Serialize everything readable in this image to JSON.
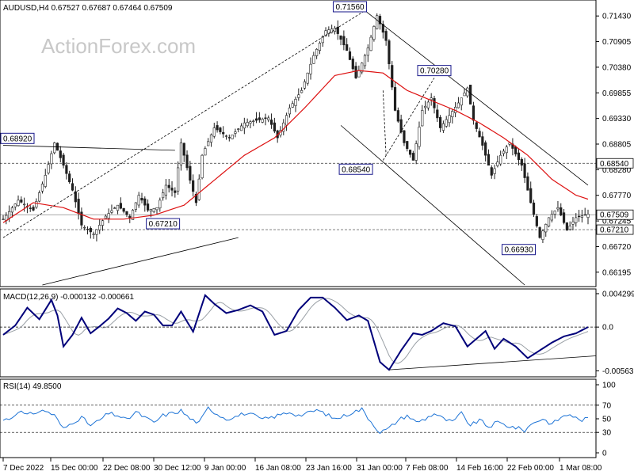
{
  "watermark": "ActionForex.com",
  "chart_data": [
    {
      "type": "candlestick",
      "title": "AUDUSD,H4  0.67527 0.67687 0.67464 0.67509",
      "ylim": [
        0.661,
        0.7175
      ],
      "y_ticks": [
        "0.71430",
        "0.70905",
        "0.70380",
        "0.69855",
        "0.69330",
        "0.68805",
        "0.68280",
        "0.67770",
        "0.67245",
        "0.66720",
        "0.66195"
      ],
      "x_ticks": [
        "7 Dec 2022",
        "15 Dec 00:00",
        "22 Dec 08:00",
        "30 Dec 12:00",
        "9 Jan 00:00",
        "16 Jan 08:00",
        "23 Jan 16:00",
        "31 Jan 00:00",
        "7 Feb 08:00",
        "14 Feb 16:00",
        "22 Feb 00:00",
        "1 Mar 08:00"
      ],
      "price_anchors": [
        [
          0,
          0.6742
        ],
        [
          5,
          0.678
        ],
        [
          10,
          0.676
        ],
        [
          14,
          0.683
        ],
        [
          17,
          0.6895
        ],
        [
          20,
          0.685
        ],
        [
          23,
          0.68
        ],
        [
          26,
          0.673
        ],
        [
          30,
          0.6712
        ],
        [
          34,
          0.6748
        ],
        [
          38,
          0.677
        ],
        [
          42,
          0.6745
        ],
        [
          45,
          0.679
        ],
        [
          48,
          0.676
        ],
        [
          51,
          0.6765
        ],
        [
          54,
          0.681
        ],
        [
          57,
          0.6795
        ],
        [
          59,
          0.6895
        ],
        [
          62,
          0.682
        ],
        [
          64,
          0.6775
        ],
        [
          66,
          0.687
        ],
        [
          70,
          0.6925
        ],
        [
          75,
          0.6905
        ],
        [
          80,
          0.6935
        ],
        [
          84,
          0.694
        ],
        [
          88,
          0.6945
        ],
        [
          91,
          0.6905
        ],
        [
          95,
          0.6965
        ],
        [
          99,
          0.7
        ],
        [
          103,
          0.707
        ],
        [
          107,
          0.712
        ],
        [
          110,
          0.7125
        ],
        [
          114,
          0.708
        ],
        [
          117,
          0.7025
        ],
        [
          121,
          0.7085
        ],
        [
          124,
          0.715
        ],
        [
          127,
          0.71
        ],
        [
          130,
          0.696
        ],
        [
          133,
          0.6895
        ],
        [
          136,
          0.686
        ],
        [
          139,
          0.696
        ],
        [
          142,
          0.6985
        ],
        [
          145,
          0.6925
        ],
        [
          148,
          0.695
        ],
        [
          151,
          0.6975
        ],
        [
          154,
          0.7005
        ],
        [
          156,
          0.694
        ],
        [
          159,
          0.689
        ],
        [
          162,
          0.683
        ],
        [
          165,
          0.687
        ],
        [
          168,
          0.6895
        ],
        [
          172,
          0.685
        ],
        [
          175,
          0.6775
        ],
        [
          178,
          0.6705
        ],
        [
          181,
          0.6745
        ],
        [
          184,
          0.6765
        ],
        [
          187,
          0.672
        ],
        [
          190,
          0.6745
        ],
        [
          194,
          0.6752
        ]
      ],
      "ma_anchors": [
        [
          0,
          0.6735
        ],
        [
          10,
          0.6775
        ],
        [
          20,
          0.6765
        ],
        [
          30,
          0.6742
        ],
        [
          40,
          0.6742
        ],
        [
          50,
          0.675
        ],
        [
          60,
          0.677
        ],
        [
          70,
          0.682
        ],
        [
          80,
          0.687
        ],
        [
          90,
          0.6905
        ],
        [
          100,
          0.6965
        ],
        [
          110,
          0.703
        ],
        [
          118,
          0.704
        ],
        [
          126,
          0.7035
        ],
        [
          134,
          0.7
        ],
        [
          142,
          0.698
        ],
        [
          150,
          0.696
        ],
        [
          158,
          0.6935
        ],
        [
          166,
          0.6905
        ],
        [
          174,
          0.687
        ],
        [
          182,
          0.6822
        ],
        [
          190,
          0.679
        ],
        [
          194,
          0.6782
        ]
      ],
      "hlines": [
        0.6854,
        0.67509,
        0.6721
      ],
      "price_boxes": [
        {
          "label": "0.71560",
          "bar": 115,
          "price": 0.7156,
          "pos": "above"
        },
        {
          "label": "0.70280",
          "bar": 143,
          "price": 0.7028,
          "pos": "above"
        },
        {
          "label": "0.68920",
          "bar": 2,
          "price": 0.6892,
          "pos": "above"
        },
        {
          "label": "0.68540",
          "bar": 117,
          "price": 0.6854,
          "pos": "below"
        },
        {
          "label": "0.67210",
          "bar": 53,
          "price": 0.6721,
          "pos": "above"
        },
        {
          "label": "0.66930",
          "bar": 171,
          "price": 0.6693,
          "pos": "below"
        }
      ],
      "right_boxes": [
        {
          "label": "0.68540",
          "price": 0.6854,
          "fill": "#ffffff"
        },
        {
          "label": "0.67509",
          "price": 0.67509,
          "fill": "#ffffff"
        },
        {
          "label": "0.67210",
          "price": 0.6721,
          "fill": "#ffffff"
        }
      ],
      "trendlines": [
        {
          "from": [
            0,
            0.689
          ],
          "to": [
            57,
            0.688
          ],
          "dash": false
        },
        {
          "from": [
            13,
            0.661
          ],
          "to": [
            78,
            0.6705
          ],
          "dash": false
        },
        {
          "from": [
            0,
            0.6705
          ],
          "to": [
            120,
            0.716
          ],
          "dash": true
        },
        {
          "from": [
            120,
            0.716
          ],
          "to": [
            194,
            0.681
          ],
          "dash": false
        },
        {
          "from": [
            112,
            0.693
          ],
          "to": [
            173,
            0.661
          ],
          "dash": false
        },
        {
          "from": [
            126,
            0.7
          ],
          "to": [
            127,
            0.687
          ],
          "dash": true
        },
        {
          "from": [
            126,
            0.686
          ],
          "to": [
            143,
            0.7025
          ],
          "dash": true
        }
      ],
      "colors": {
        "candle": "#1f1f1f",
        "ma": "#dd1111",
        "line": "#000000",
        "box_border": "#1a1a8c"
      }
    },
    {
      "type": "line",
      "title": "MACD(12,26,9) -0.000132 -0.000661",
      "ylim": [
        -0.0062,
        0.0046
      ],
      "y_ticks": [
        "0.004299",
        "0.0",
        "-0.005636"
      ],
      "right_boxes": [
        "0.0"
      ],
      "macd_anchors": [
        [
          0,
          -0.001
        ],
        [
          4,
          0.0002
        ],
        [
          8,
          0.0025
        ],
        [
          12,
          0.001
        ],
        [
          16,
          0.0035
        ],
        [
          18,
          0.0015
        ],
        [
          20,
          -0.0025
        ],
        [
          23,
          -0.001
        ],
        [
          26,
          0.0012
        ],
        [
          29,
          -0.0008
        ],
        [
          32,
          0.0001
        ],
        [
          35,
          0.0011
        ],
        [
          38,
          0.0024
        ],
        [
          41,
          0.0018
        ],
        [
          44,
          0.0008
        ],
        [
          47,
          0.002
        ],
        [
          50,
          0.0016
        ],
        [
          53,
          0.0002
        ],
        [
          56,
          0.0002
        ],
        [
          59,
          0.002
        ],
        [
          63,
          -0.0006
        ],
        [
          67,
          0.0041
        ],
        [
          70,
          0.003
        ],
        [
          74,
          0.0018
        ],
        [
          78,
          0.0022
        ],
        [
          82,
          0.0028
        ],
        [
          86,
          0.002
        ],
        [
          90,
          -0.001
        ],
        [
          94,
          -0.0005
        ],
        [
          98,
          0.0022
        ],
        [
          102,
          0.0038
        ],
        [
          106,
          0.0038
        ],
        [
          110,
          0.0025
        ],
        [
          114,
          0.0009
        ],
        [
          118,
          0.0015
        ],
        [
          121,
          0.0008
        ],
        [
          125,
          -0.0045
        ],
        [
          128,
          -0.0055
        ],
        [
          132,
          -0.003
        ],
        [
          136,
          -0.0008
        ],
        [
          139,
          -0.001
        ],
        [
          142,
          -0.0005
        ],
        [
          146,
          0.0005
        ],
        [
          150,
          0.0001
        ],
        [
          154,
          -0.0025
        ],
        [
          157,
          -0.0015
        ],
        [
          160,
          -0.0005
        ],
        [
          163,
          -0.0028
        ],
        [
          166,
          -0.0015
        ],
        [
          170,
          -0.0025
        ],
        [
          174,
          -0.004
        ],
        [
          178,
          -0.003
        ],
        [
          182,
          -0.002
        ],
        [
          186,
          -0.0012
        ],
        [
          190,
          -0.0008
        ],
        [
          194,
          0.0
        ]
      ],
      "signal_lag": 3,
      "trendline": {
        "from": [
          128,
          -0.0055
        ],
        "to": [
          194,
          -0.0037
        ]
      },
      "colors": {
        "macd": "#00007a",
        "signal": "#9aa0a6",
        "trendline": "#000000"
      }
    },
    {
      "type": "line",
      "title": "RSI(14) 49.8500",
      "ylim": [
        0,
        100
      ],
      "y_ticks": [
        "100",
        "70",
        "50",
        "30",
        "0"
      ],
      "levels": [
        70,
        30
      ],
      "rsi_anchors": [
        [
          0,
          48
        ],
        [
          3,
          52
        ],
        [
          5,
          62
        ],
        [
          8,
          55
        ],
        [
          11,
          60
        ],
        [
          14,
          62
        ],
        [
          17,
          55
        ],
        [
          20,
          35
        ],
        [
          23,
          45
        ],
        [
          26,
          52
        ],
        [
          29,
          40
        ],
        [
          32,
          48
        ],
        [
          35,
          58
        ],
        [
          38,
          55
        ],
        [
          41,
          48
        ],
        [
          44,
          60
        ],
        [
          47,
          52
        ],
        [
          50,
          44
        ],
        [
          53,
          55
        ],
        [
          56,
          58
        ],
        [
          59,
          62
        ],
        [
          62,
          50
        ],
        [
          65,
          44
        ],
        [
          68,
          66
        ],
        [
          71,
          57
        ],
        [
          74,
          50
        ],
        [
          77,
          53
        ],
        [
          80,
          58
        ],
        [
          83,
          55
        ],
        [
          86,
          49
        ],
        [
          89,
          52
        ],
        [
          92,
          56
        ],
        [
          95,
          60
        ],
        [
          98,
          55
        ],
        [
          101,
          58
        ],
        [
          104,
          63
        ],
        [
          107,
          57
        ],
        [
          110,
          50
        ],
        [
          113,
          54
        ],
        [
          116,
          60
        ],
        [
          119,
          64
        ],
        [
          122,
          46
        ],
        [
          125,
          30
        ],
        [
          128,
          36
        ],
        [
          131,
          48
        ],
        [
          134,
          55
        ],
        [
          137,
          45
        ],
        [
          140,
          50
        ],
        [
          143,
          58
        ],
        [
          146,
          50
        ],
        [
          149,
          45
        ],
        [
          152,
          58
        ],
        [
          155,
          40
        ],
        [
          158,
          48
        ],
        [
          161,
          38
        ],
        [
          164,
          45
        ],
        [
          167,
          40
        ],
        [
          170,
          37
        ],
        [
          173,
          33
        ],
        [
          176,
          45
        ],
        [
          179,
          50
        ],
        [
          182,
          42
        ],
        [
          185,
          52
        ],
        [
          188,
          57
        ],
        [
          191,
          48
        ],
        [
          194,
          50
        ]
      ],
      "colors": {
        "rsi": "#1e74d6",
        "level": "#000000"
      }
    }
  ]
}
